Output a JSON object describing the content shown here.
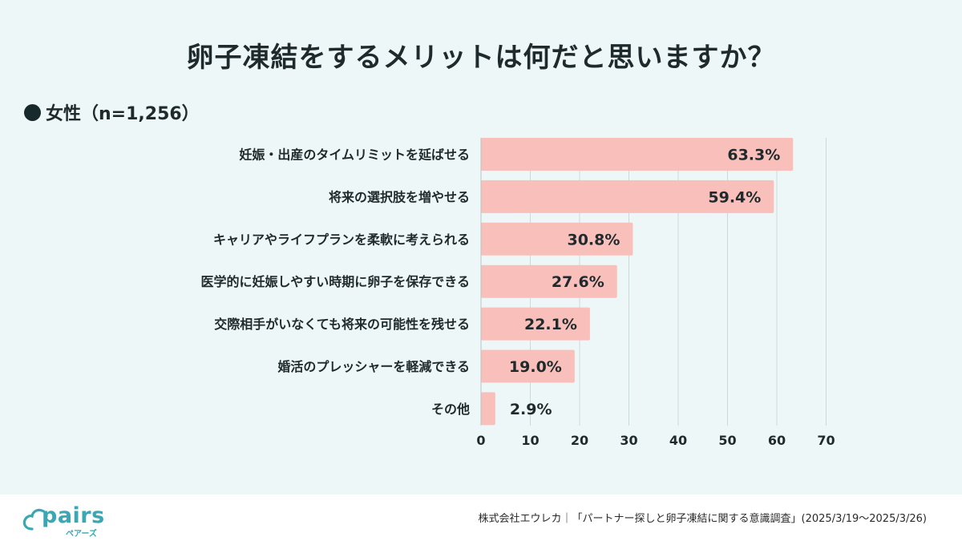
{
  "title": "卵子凍結をするメリットは何だと思いますか？",
  "group_label": "女性（n=1,256）",
  "footer": {
    "logo_text": "pairs",
    "logo_sub": "ペアーズ",
    "source": "株式会社エウレカ｜「パートナー探しと卵子凍結に関する意識調査」(2025/3/19～2025/3/26)"
  },
  "colors": {
    "bar": "#f9c0bb",
    "grid": "#cdd8d8",
    "background": "#eef7f7",
    "brand": "#3aa7b3"
  },
  "chart_data": {
    "type": "bar",
    "orientation": "horizontal",
    "categories": [
      "妊娠・出産のタイムリミットを延ばせる",
      "将来の選択肢を増やせる",
      "キャリアやライフプランを柔軟に考えられる",
      "医学的に妊娠しやすい時期に卵子を保存できる",
      "交際相手がいなくても将来の可能性を残せる",
      "婚活のプレッシャーを軽減できる",
      "その他"
    ],
    "values": [
      63.3,
      59.4,
      30.8,
      27.6,
      22.1,
      19.0,
      2.9
    ],
    "value_labels": [
      "63.3%",
      "59.4%",
      "30.8%",
      "27.6%",
      "22.1%",
      "19.0%",
      "2.9%"
    ],
    "xlim": [
      0,
      70
    ],
    "xticks": [
      0,
      10,
      20,
      30,
      40,
      50,
      60,
      70
    ],
    "grid": true
  }
}
